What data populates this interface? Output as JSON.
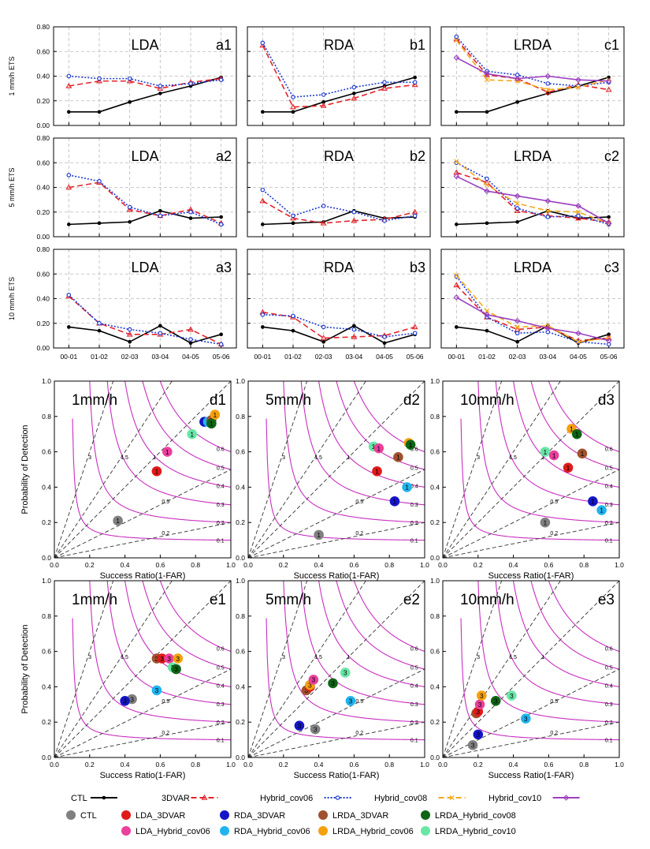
{
  "chart_data": {
    "type": "line",
    "time_categories": [
      "00-01",
      "01-02",
      "02-03",
      "03-04",
      "04-05",
      "05-06"
    ],
    "ets_ylabels": [
      "1 mm/h  ETS",
      "5 mm/h  ETS",
      "10 mm/h  ETS"
    ],
    "ets_ytick_labels": [
      "0.00",
      "0.20",
      "0.40",
      "0.60",
      "0.80"
    ],
    "ets_ylim": [
      0,
      0.8
    ],
    "ets_panels": [
      {
        "row": 0,
        "col": 0,
        "title": "LDA",
        "tag": "a1",
        "series": [
          {
            "name": "CTL",
            "values": [
              0.11,
              0.11,
              0.19,
              0.26,
              0.32,
              0.39
            ]
          },
          {
            "name": "3DVAR",
            "values": [
              0.32,
              0.36,
              0.36,
              0.3,
              0.35,
              0.38
            ]
          },
          {
            "name": "Hybrid_cov06",
            "values": [
              0.4,
              0.38,
              0.38,
              0.32,
              0.34,
              0.37
            ]
          }
        ]
      },
      {
        "row": 0,
        "col": 1,
        "title": "RDA",
        "tag": "b1",
        "series": [
          {
            "name": "CTL",
            "values": [
              0.11,
              0.11,
              0.19,
              0.26,
              0.32,
              0.39
            ]
          },
          {
            "name": "3DVAR",
            "values": [
              0.65,
              0.15,
              0.16,
              0.22,
              0.3,
              0.33
            ]
          },
          {
            "name": "Hybrid_cov06",
            "values": [
              0.67,
              0.23,
              0.25,
              0.31,
              0.35,
              0.35
            ]
          }
        ]
      },
      {
        "row": 0,
        "col": 2,
        "title": "LRDA",
        "tag": "c1",
        "series": [
          {
            "name": "CTL",
            "values": [
              0.11,
              0.11,
              0.19,
              0.26,
              0.32,
              0.39
            ]
          },
          {
            "name": "3DVAR",
            "values": [
              0.7,
              0.41,
              0.38,
              0.27,
              0.33,
              0.29
            ]
          },
          {
            "name": "Hybrid_cov06",
            "values": [
              0.72,
              0.44,
              0.41,
              0.34,
              0.32,
              0.35
            ]
          },
          {
            "name": "Hybrid_cov08",
            "values": [
              0.69,
              0.37,
              0.36,
              0.29,
              0.31,
              0.37
            ]
          },
          {
            "name": "Hybrid_cov10",
            "values": [
              0.55,
              0.42,
              0.38,
              0.4,
              0.37,
              0.36
            ]
          }
        ]
      },
      {
        "row": 1,
        "col": 0,
        "title": "LDA",
        "tag": "a2",
        "series": [
          {
            "name": "CTL",
            "values": [
              0.1,
              0.11,
              0.12,
              0.21,
              0.15,
              0.16
            ]
          },
          {
            "name": "3DVAR",
            "values": [
              0.4,
              0.44,
              0.22,
              0.17,
              0.22,
              0.11
            ]
          },
          {
            "name": "Hybrid_cov06",
            "values": [
              0.5,
              0.45,
              0.24,
              0.17,
              0.2,
              0.1
            ]
          }
        ]
      },
      {
        "row": 1,
        "col": 1,
        "title": "RDA",
        "tag": "b2",
        "series": [
          {
            "name": "CTL",
            "values": [
              0.1,
              0.11,
              0.12,
              0.21,
              0.15,
              0.16
            ]
          },
          {
            "name": "3DVAR",
            "values": [
              0.29,
              0.15,
              0.11,
              0.13,
              0.14,
              0.2
            ]
          },
          {
            "name": "Hybrid_cov06",
            "values": [
              0.38,
              0.17,
              0.25,
              0.2,
              0.13,
              0.17
            ]
          }
        ]
      },
      {
        "row": 1,
        "col": 2,
        "title": "LRDA",
        "tag": "c2",
        "series": [
          {
            "name": "CTL",
            "values": [
              0.1,
              0.11,
              0.12,
              0.21,
              0.15,
              0.16
            ]
          },
          {
            "name": "3DVAR",
            "values": [
              0.52,
              0.44,
              0.21,
              0.17,
              0.15,
              0.12
            ]
          },
          {
            "name": "Hybrid_cov06",
            "values": [
              0.6,
              0.47,
              0.23,
              0.16,
              0.17,
              0.1
            ]
          },
          {
            "name": "Hybrid_cov08",
            "values": [
              0.61,
              0.42,
              0.27,
              0.21,
              0.2,
              0.11
            ]
          },
          {
            "name": "Hybrid_cov10",
            "values": [
              0.49,
              0.37,
              0.33,
              0.29,
              0.25,
              0.11
            ]
          }
        ]
      },
      {
        "row": 2,
        "col": 0,
        "title": "LDA",
        "tag": "a3",
        "series": [
          {
            "name": "CTL",
            "values": [
              0.17,
              0.14,
              0.05,
              0.18,
              0.04,
              0.11
            ]
          },
          {
            "name": "3DVAR",
            "values": [
              0.42,
              0.2,
              0.11,
              0.11,
              0.15,
              0.03
            ]
          },
          {
            "name": "Hybrid_cov06",
            "values": [
              0.43,
              0.2,
              0.15,
              0.12,
              0.07,
              0.03
            ]
          }
        ]
      },
      {
        "row": 2,
        "col": 1,
        "title": "RDA",
        "tag": "b3",
        "series": [
          {
            "name": "CTL",
            "values": [
              0.17,
              0.14,
              0.05,
              0.18,
              0.04,
              0.11
            ]
          },
          {
            "name": "3DVAR",
            "values": [
              0.29,
              0.25,
              0.08,
              0.09,
              0.1,
              0.17
            ]
          },
          {
            "name": "Hybrid_cov06",
            "values": [
              0.27,
              0.26,
              0.17,
              0.15,
              0.09,
              0.12
            ]
          }
        ]
      },
      {
        "row": 2,
        "col": 2,
        "title": "LRDA",
        "tag": "c3",
        "series": [
          {
            "name": "CTL",
            "values": [
              0.17,
              0.14,
              0.05,
              0.18,
              0.04,
              0.11
            ]
          },
          {
            "name": "3DVAR",
            "values": [
              0.51,
              0.25,
              0.15,
              0.17,
              0.06,
              0.08
            ]
          },
          {
            "name": "Hybrid_cov06",
            "values": [
              0.58,
              0.25,
              0.12,
              0.13,
              0.05,
              0.03
            ]
          },
          {
            "name": "Hybrid_cov08",
            "values": [
              0.59,
              0.3,
              0.17,
              0.18,
              0.05,
              0.08
            ]
          },
          {
            "name": "Hybrid_cov10",
            "values": [
              0.41,
              0.27,
              0.22,
              0.16,
              0.12,
              0.06
            ]
          }
        ]
      }
    ],
    "perf_xlabel": "Success Ratio(1-FAR)",
    "perf_ylabel": "Probability of Detection",
    "perf_tick_labels": [
      "0.0",
      "0.2",
      "0.4",
      "0.6",
      "0.8",
      "1.0"
    ],
    "bias_lines": [
      0.2,
      0.5,
      1,
      1.5,
      3
    ],
    "bias_labels": [
      "0.2",
      "0.5",
      "1",
      "1.5",
      "3"
    ],
    "csi_curves": [
      0.1,
      0.2,
      0.3,
      0.4,
      0.5,
      0.6
    ],
    "csi_labels": [
      "0.1",
      "0.2",
      "0.3",
      "0.4",
      "0.5",
      "0.6"
    ],
    "perf_panels": [
      {
        "row": 0,
        "col": 0,
        "title": "1mm/h",
        "tag": "d1",
        "points": [
          {
            "exp": "CTL",
            "label": "1",
            "sr": 0.36,
            "pod": 0.21
          },
          {
            "exp": "LDA_3DVAR",
            "label": "1",
            "sr": 0.58,
            "pod": 0.49
          },
          {
            "exp": "LDA_Hybrid_cov06",
            "label": "1",
            "sr": 0.64,
            "pod": 0.6
          },
          {
            "exp": "LRDA_Hybrid_cov10",
            "label": "1",
            "sr": 0.78,
            "pod": 0.7
          },
          {
            "exp": "RDA_3DVAR",
            "label": "1",
            "sr": 0.85,
            "pod": 0.77
          },
          {
            "exp": "RDA_Hybrid_cov06",
            "label": "1",
            "sr": 0.87,
            "pod": 0.77
          },
          {
            "exp": "LRDA_3DVAR",
            "label": "1",
            "sr": 0.89,
            "pod": 0.78
          },
          {
            "exp": "LRDA_Hybrid_cov06",
            "label": "1",
            "sr": 0.91,
            "pod": 0.81
          },
          {
            "exp": "LRDA_Hybrid_cov08",
            "label": "1",
            "sr": 0.89,
            "pod": 0.76
          }
        ]
      },
      {
        "row": 0,
        "col": 1,
        "title": "5mm/h",
        "tag": "d2",
        "points": [
          {
            "exp": "CTL",
            "label": "1",
            "sr": 0.4,
            "pod": 0.13
          },
          {
            "exp": "RDA_3DVAR",
            "label": "1",
            "sr": 0.83,
            "pod": 0.32
          },
          {
            "exp": "RDA_Hybrid_cov06",
            "label": "1",
            "sr": 0.9,
            "pod": 0.4
          },
          {
            "exp": "LDA_3DVAR",
            "label": "1",
            "sr": 0.73,
            "pod": 0.49
          },
          {
            "exp": "LRDA_3DVAR",
            "label": "1",
            "sr": 0.85,
            "pod": 0.57
          },
          {
            "exp": "LRDA_Hybrid_cov10",
            "label": "1",
            "sr": 0.71,
            "pod": 0.63
          },
          {
            "exp": "LDA_Hybrid_cov06",
            "label": "1",
            "sr": 0.74,
            "pod": 0.62
          },
          {
            "exp": "LRDA_Hybrid_cov06",
            "label": "1",
            "sr": 0.91,
            "pod": 0.65
          },
          {
            "exp": "LRDA_Hybrid_cov08",
            "label": "1",
            "sr": 0.92,
            "pod": 0.64
          }
        ]
      },
      {
        "row": 0,
        "col": 2,
        "title": "10mm/h",
        "tag": "d3",
        "points": [
          {
            "exp": "CTL",
            "label": "1",
            "sr": 0.58,
            "pod": 0.2
          },
          {
            "exp": "RDA_3DVAR",
            "label": "1",
            "sr": 0.85,
            "pod": 0.32
          },
          {
            "exp": "RDA_Hybrid_cov06",
            "label": "1",
            "sr": 0.9,
            "pod": 0.27
          },
          {
            "exp": "LDA_3DVAR",
            "label": "1",
            "sr": 0.71,
            "pod": 0.51
          },
          {
            "exp": "LRDA_Hybrid_cov10",
            "label": "1",
            "sr": 0.58,
            "pod": 0.6
          },
          {
            "exp": "LDA_Hybrid_cov06",
            "label": "1",
            "sr": 0.63,
            "pod": 0.58
          },
          {
            "exp": "LRDA_3DVAR",
            "label": "1",
            "sr": 0.79,
            "pod": 0.59
          },
          {
            "exp": "LRDA_Hybrid_cov06",
            "label": "1",
            "sr": 0.73,
            "pod": 0.73
          },
          {
            "exp": "LRDA_Hybrid_cov08",
            "label": "1",
            "sr": 0.76,
            "pod": 0.7
          }
        ]
      },
      {
        "row": 1,
        "col": 0,
        "title": "1mm/h",
        "tag": "e1",
        "points": [
          {
            "exp": "CTL",
            "label": "3",
            "sr": 0.44,
            "pod": 0.33
          },
          {
            "exp": "RDA_3DVAR",
            "label": "3",
            "sr": 0.4,
            "pod": 0.32
          },
          {
            "exp": "RDA_Hybrid_cov06",
            "label": "3",
            "sr": 0.58,
            "pod": 0.38
          },
          {
            "exp": "LRDA_3DVAR",
            "label": "3",
            "sr": 0.58,
            "pod": 0.56
          },
          {
            "exp": "LDA_3DVAR",
            "label": "3",
            "sr": 0.61,
            "pod": 0.56
          },
          {
            "exp": "LDA_Hybrid_cov06",
            "label": "3",
            "sr": 0.65,
            "pod": 0.56
          },
          {
            "exp": "LRDA_Hybrid_cov06",
            "label": "3",
            "sr": 0.7,
            "pod": 0.56
          },
          {
            "exp": "LRDA_Hybrid_cov10",
            "label": "3",
            "sr": 0.67,
            "pod": 0.51
          },
          {
            "exp": "LRDA_Hybrid_cov08",
            "label": "3",
            "sr": 0.69,
            "pod": 0.5
          }
        ]
      },
      {
        "row": 1,
        "col": 1,
        "title": "5mm/h",
        "tag": "e2",
        "points": [
          {
            "exp": "CTL",
            "label": "3",
            "sr": 0.38,
            "pod": 0.16
          },
          {
            "exp": "RDA_3DVAR",
            "label": "3",
            "sr": 0.29,
            "pod": 0.18
          },
          {
            "exp": "RDA_Hybrid_cov06",
            "label": "3",
            "sr": 0.58,
            "pod": 0.32
          },
          {
            "exp": "LRDA_3DVAR",
            "label": "3",
            "sr": 0.33,
            "pod": 0.38
          },
          {
            "exp": "LDA_3DVAR",
            "label": "3",
            "sr": 0.35,
            "pod": 0.4
          },
          {
            "exp": "LRDA_Hybrid_cov06",
            "label": "3",
            "sr": 0.35,
            "pod": 0.41
          },
          {
            "exp": "LDA_Hybrid_cov06",
            "label": "3",
            "sr": 0.37,
            "pod": 0.44
          },
          {
            "exp": "LRDA_Hybrid_cov08",
            "label": "3",
            "sr": 0.48,
            "pod": 0.42
          },
          {
            "exp": "LRDA_Hybrid_cov10",
            "label": "3",
            "sr": 0.55,
            "pod": 0.48
          }
        ]
      },
      {
        "row": 1,
        "col": 2,
        "title": "10mm/h",
        "tag": "e3",
        "points": [
          {
            "exp": "CTL",
            "label": "3",
            "sr": 0.17,
            "pod": 0.07
          },
          {
            "exp": "RDA_3DVAR",
            "label": "3",
            "sr": 0.2,
            "pod": 0.13
          },
          {
            "exp": "RDA_Hybrid_cov06",
            "label": "3",
            "sr": 0.47,
            "pod": 0.22
          },
          {
            "exp": "LRDA_3DVAR",
            "label": "3",
            "sr": 0.19,
            "pod": 0.25
          },
          {
            "exp": "LDA_3DVAR",
            "label": "3",
            "sr": 0.2,
            "pod": 0.26
          },
          {
            "exp": "LDA_Hybrid_cov06",
            "label": "3",
            "sr": 0.21,
            "pod": 0.3
          },
          {
            "exp": "LRDA_Hybrid_cov06",
            "label": "3",
            "sr": 0.22,
            "pod": 0.35
          },
          {
            "exp": "LRDA_Hybrid_cov08",
            "label": "3",
            "sr": 0.3,
            "pod": 0.32
          },
          {
            "exp": "LRDA_Hybrid_cov10",
            "label": "3",
            "sr": 0.39,
            "pod": 0.35
          }
        ]
      }
    ]
  },
  "legend": {
    "lines": [
      {
        "name": "CTL",
        "color": "#000000",
        "marker": "dot",
        "dash": "solid"
      },
      {
        "name": "3DVAR",
        "color": "#e3242b",
        "marker": "triangle",
        "dash": "dashed"
      },
      {
        "name": "Hybrid_cov06",
        "color": "#1f3ad0",
        "marker": "circle",
        "dash": "dotted"
      },
      {
        "name": "Hybrid_cov08",
        "color": "#f2a91e",
        "marker": "x",
        "dash": "dashed"
      },
      {
        "name": "Hybrid_cov10",
        "color": "#9b3fc0",
        "marker": "diamond",
        "dash": "solid"
      }
    ],
    "dots": [
      {
        "name": "CTL",
        "color": "#808080"
      },
      {
        "name": "LDA_3DVAR",
        "color": "#e11a1a"
      },
      {
        "name": "RDA_3DVAR",
        "color": "#1515c8"
      },
      {
        "name": "LRDA_3DVAR",
        "color": "#a0522d"
      },
      {
        "name": "LRDA_Hybrid_cov08",
        "color": "#0e6414"
      },
      {
        "name": "LDA_Hybrid_cov06",
        "color": "#ec3f9c"
      },
      {
        "name": "RDA_Hybrid_cov06",
        "color": "#20b4ee"
      },
      {
        "name": "LRDA_Hybrid_cov06",
        "color": "#f5a00c"
      },
      {
        "name": "LRDA_Hybrid_cov10",
        "color": "#68e6a6"
      }
    ]
  }
}
